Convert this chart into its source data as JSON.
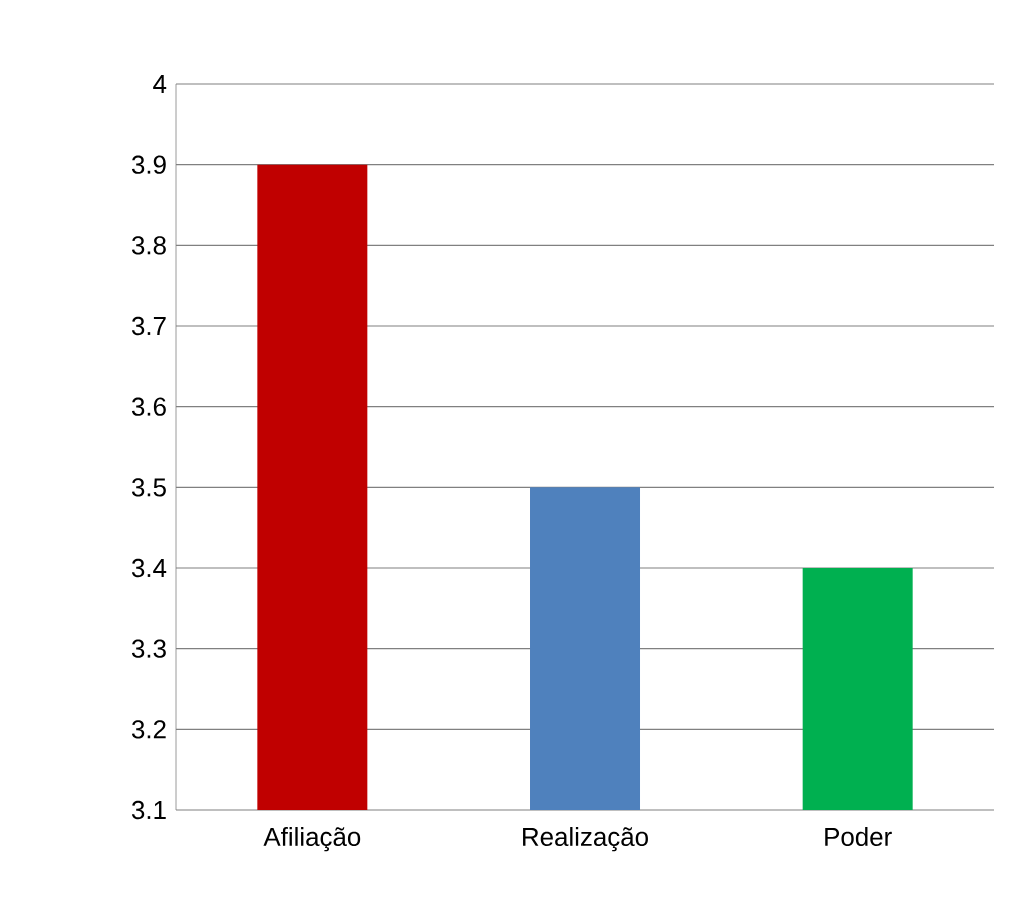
{
  "chart_data": {
    "type": "bar",
    "categories": [
      "Afiliação",
      "Realização",
      "Poder"
    ],
    "values": [
      3.9,
      3.5,
      3.4
    ],
    "colors": [
      "#c00000",
      "#4f81bd",
      "#00b050"
    ],
    "ylim": [
      3.1,
      4
    ],
    "yticks": [
      3.1,
      3.2,
      3.3,
      3.4,
      3.5,
      3.6,
      3.7,
      3.8,
      3.9,
      4
    ],
    "grid": "y"
  }
}
